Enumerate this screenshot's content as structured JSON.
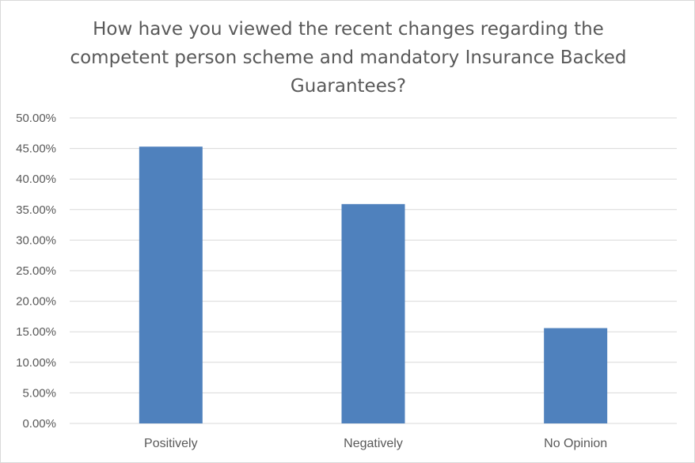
{
  "chart_data": {
    "type": "bar",
    "title": "How have you viewed the recent changes regarding the competent person scheme and mandatory Insurance Backed Guarantees?",
    "categories": [
      "Positively",
      "Negatively",
      "No Opinion"
    ],
    "values": [
      45.3,
      35.9,
      15.6
    ],
    "ylim": [
      0,
      50
    ],
    "yticks": [
      "0.00%",
      "5.00%",
      "10.00%",
      "15.00%",
      "20.00%",
      "25.00%",
      "30.00%",
      "35.00%",
      "40.00%",
      "45.00%",
      "50.00%"
    ],
    "grid": true,
    "bar_color": "#4f81bd",
    "xlabel": "",
    "ylabel": ""
  }
}
